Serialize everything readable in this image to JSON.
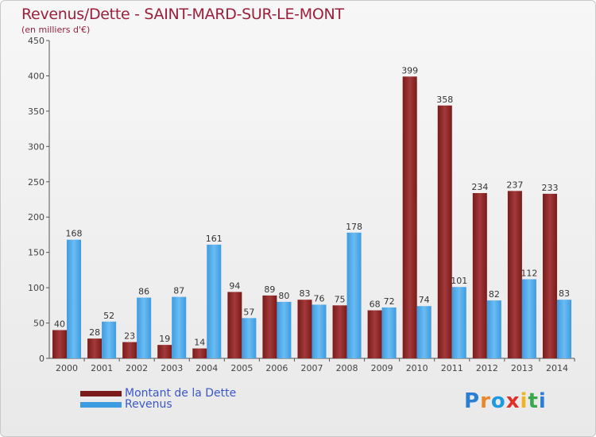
{
  "chart_data": {
    "type": "bar",
    "title": "Revenus/Dette - SAINT-MARD-SUR-LE-MONT",
    "subtitle": "(en milliers d'€)",
    "categories": [
      "2000",
      "2001",
      "2002",
      "2003",
      "2004",
      "2005",
      "2006",
      "2007",
      "2008",
      "2009",
      "2010",
      "2011",
      "2012",
      "2013",
      "2014"
    ],
    "series": [
      {
        "name": "Montant de la Dette",
        "color": "#7a1a1a",
        "values": [
          40,
          28,
          23,
          19,
          14,
          94,
          89,
          83,
          75,
          68,
          399,
          358,
          234,
          237,
          233
        ]
      },
      {
        "name": "Revenus",
        "color": "#3d9be0",
        "values": [
          168,
          52,
          86,
          87,
          161,
          57,
          80,
          76,
          178,
          72,
          74,
          101,
          82,
          112,
          83
        ]
      }
    ],
    "ylim": [
      0,
      450
    ],
    "yticks": [
      0,
      50,
      100,
      150,
      200,
      250,
      300,
      350,
      400,
      450
    ],
    "grid": false,
    "legend_position": "bottom-left"
  },
  "branding": {
    "logo_text": "Proxiti",
    "logo_colors": [
      "#2a7fd4",
      "#e8862a",
      "#1e9be0",
      "#e0302a",
      "#f2b31e",
      "#3aa84a",
      "#2a7fd4"
    ]
  }
}
